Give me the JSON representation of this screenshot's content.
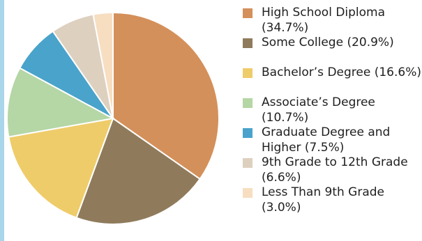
{
  "chart_data": {
    "type": "pie",
    "categories": [
      "High School Diploma",
      "Some College",
      "Bachelor’s Degree",
      "Associate’s Degree",
      "Graduate Degree and Higher",
      "9th Grade to 12th Grade",
      "Less Than 9th Grade"
    ],
    "values": [
      34.7,
      20.9,
      16.6,
      10.7,
      7.5,
      6.6,
      3.0
    ],
    "colors": [
      "#d4905a",
      "#8f7b5b",
      "#efcc6a",
      "#b5d6a5",
      "#4aa3cb",
      "#ddd0bf",
      "#f7dec1"
    ],
    "legend_labels": [
      "High School Diploma (34.7%)",
      "Some College (20.9%)",
      "Bachelor’s Degree (16.6%)",
      "Associate’s Degree (10.7%)",
      "Graduate Degree and Higher (7.5%)",
      "9th Grade to 12th Grade (6.6%)",
      "Less Than 9th Grade (3.0%)"
    ],
    "legend_position": "right"
  }
}
